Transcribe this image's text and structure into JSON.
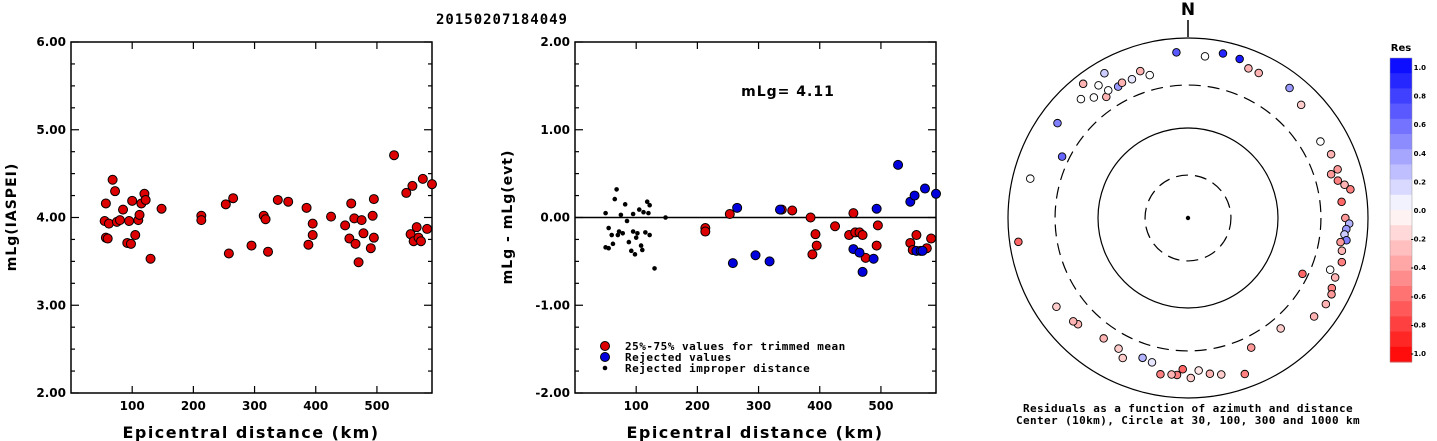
{
  "figure_title": "20150207184049",
  "chart_data": [
    {
      "type": "scatter",
      "title": "",
      "xlabel": "Epicentral distance (km)",
      "ylabel": "mLg(IASPEI)",
      "xlim": [
        0,
        590
      ],
      "ylim": [
        2.0,
        6.0
      ],
      "x_ticks": [
        "100",
        "200",
        "300",
        "400",
        "500"
      ],
      "y_ticks": [
        "2.00",
        "3.00",
        "4.00",
        "5.00",
        "6.00"
      ],
      "grid": false,
      "series": [
        {
          "color": "#dd0000",
          "points": [
            [
              55,
              3.96
            ],
            [
              57,
              4.16
            ],
            [
              57,
              3.77
            ],
            [
              60,
              3.76
            ],
            [
              62,
              3.93
            ],
            [
              68,
              4.43
            ],
            [
              72,
              4.3
            ],
            [
              75,
              3.95
            ],
            [
              80,
              3.97
            ],
            [
              85,
              4.09
            ],
            [
              92,
              3.71
            ],
            [
              95,
              3.96
            ],
            [
              98,
              3.7
            ],
            [
              100,
              4.19
            ],
            [
              105,
              3.8
            ],
            [
              110,
              3.97
            ],
            [
              112,
              4.03
            ],
            [
              115,
              4.16
            ],
            [
              120,
              4.27
            ],
            [
              122,
              4.2
            ],
            [
              130,
              3.53
            ],
            [
              148,
              4.1
            ],
            [
              213,
              4.02
            ],
            [
              213,
              3.97
            ],
            [
              253,
              4.15
            ],
            [
              258,
              3.59
            ],
            [
              265,
              4.22
            ],
            [
              295,
              3.68
            ],
            [
              315,
              4.02
            ],
            [
              318,
              3.98
            ],
            [
              322,
              3.61
            ],
            [
              338,
              4.2
            ],
            [
              355,
              4.18
            ],
            [
              385,
              4.11
            ],
            [
              388,
              3.69
            ],
            [
              395,
              3.8
            ],
            [
              395,
              3.93
            ],
            [
              425,
              4.01
            ],
            [
              448,
              3.91
            ],
            [
              455,
              3.76
            ],
            [
              458,
              4.16
            ],
            [
              463,
              3.99
            ],
            [
              465,
              3.7
            ],
            [
              470,
              3.49
            ],
            [
              475,
              3.97
            ],
            [
              478,
              3.82
            ],
            [
              490,
              3.65
            ],
            [
              493,
              4.02
            ],
            [
              495,
              4.21
            ],
            [
              495,
              3.77
            ],
            [
              528,
              4.71
            ],
            [
              548,
              4.28
            ],
            [
              555,
              3.81
            ],
            [
              558,
              4.36
            ],
            [
              560,
              3.73
            ],
            [
              565,
              3.89
            ],
            [
              568,
              3.77
            ],
            [
              572,
              3.73
            ],
            [
              575,
              4.44
            ],
            [
              582,
              3.87
            ],
            [
              590,
              4.38
            ]
          ]
        }
      ]
    },
    {
      "type": "scatter",
      "title": "",
      "xlabel": "Epicentral distance (km)",
      "ylabel": "mLg - mLg(evt)",
      "annotation": "mLg= 4.11",
      "xlim": [
        0,
        590
      ],
      "ylim": [
        -2.0,
        2.0
      ],
      "x_ticks": [
        "100",
        "200",
        "300",
        "400",
        "500"
      ],
      "y_ticks": [
        "-2.00",
        "-1.00",
        "0.00",
        "1.00",
        "2.00"
      ],
      "reference_line": 0.0,
      "legend": {
        "placement": "lower-left",
        "entries": [
          {
            "label": "25%-75% values for trimmed mean",
            "color": "#dd0000"
          },
          {
            "label": "Rejected values",
            "color": "#0000dd"
          },
          {
            "label": "Rejected improper distance",
            "color": "#000000"
          }
        ]
      },
      "series": [
        {
          "label": "25%-75% values for trimmed mean",
          "color": "#dd0000",
          "points": [
            [
              213,
              -0.12
            ],
            [
              213,
              -0.16
            ],
            [
              253,
              0.04
            ],
            [
              338,
              0.09
            ],
            [
              355,
              0.08
            ],
            [
              385,
              0.0
            ],
            [
              388,
              -0.42
            ],
            [
              393,
              -0.19
            ],
            [
              395,
              -0.32
            ],
            [
              425,
              -0.1
            ],
            [
              448,
              -0.2
            ],
            [
              455,
              0.05
            ],
            [
              458,
              -0.17
            ],
            [
              465,
              -0.17
            ],
            [
              470,
              -0.2
            ],
            [
              475,
              -0.46
            ],
            [
              493,
              -0.32
            ],
            [
              495,
              -0.09
            ],
            [
              548,
              -0.29
            ],
            [
              552,
              -0.37
            ],
            [
              558,
              -0.2
            ],
            [
              575,
              -0.35
            ],
            [
              582,
              -0.24
            ]
          ]
        },
        {
          "label": "Rejected values",
          "color": "#0000dd",
          "points": [
            [
              258,
              -0.52
            ],
            [
              265,
              0.11
            ],
            [
              295,
              -0.43
            ],
            [
              318,
              -0.5
            ],
            [
              335,
              0.09
            ],
            [
              455,
              -0.36
            ],
            [
              465,
              -0.4
            ],
            [
              470,
              -0.62
            ],
            [
              488,
              -0.47
            ],
            [
              493,
              0.1
            ],
            [
              528,
              0.6
            ],
            [
              548,
              0.18
            ],
            [
              555,
              0.25
            ],
            [
              558,
              -0.38
            ],
            [
              565,
              -0.38
            ],
            [
              568,
              -0.38
            ],
            [
              572,
              0.33
            ],
            [
              590,
              0.27
            ]
          ]
        },
        {
          "label": "Rejected improper distance",
          "color": "#000000",
          "points": [
            [
              50,
              0.05
            ],
            [
              50,
              -0.34
            ],
            [
              55,
              -0.12
            ],
            [
              55,
              -0.35
            ],
            [
              60,
              -0.2
            ],
            [
              62,
              -0.3
            ],
            [
              65,
              0.21
            ],
            [
              68,
              0.32
            ],
            [
              70,
              -0.2
            ],
            [
              72,
              -0.16
            ],
            [
              75,
              0.03
            ],
            [
              78,
              -0.18
            ],
            [
              82,
              0.15
            ],
            [
              85,
              -0.04
            ],
            [
              88,
              -0.28
            ],
            [
              92,
              -0.38
            ],
            [
              95,
              0.04
            ],
            [
              95,
              -0.16
            ],
            [
              98,
              -0.42
            ],
            [
              100,
              -0.23
            ],
            [
              102,
              -0.18
            ],
            [
              105,
              0.09
            ],
            [
              108,
              -0.32
            ],
            [
              110,
              -0.37
            ],
            [
              112,
              0.06
            ],
            [
              115,
              -0.17
            ],
            [
              118,
              0.18
            ],
            [
              120,
              0.05
            ],
            [
              122,
              0.14
            ],
            [
              122,
              -0.2
            ],
            [
              130,
              -0.58
            ],
            [
              148,
              0.0
            ]
          ]
        }
      ]
    },
    {
      "type": "scatter",
      "title": "N",
      "kind": "polar residual plot (azimuth vs log distance)",
      "caption_lines": [
        "Residuals as a function of azimuth and distance",
        "Center (10km), Circle at 30, 100, 300 and 1000 km"
      ],
      "rings_km": [
        30,
        100,
        300,
        1000
      ],
      "ring_styles": [
        "dashed",
        "solid",
        "dashed",
        "solid"
      ],
      "colorbar": {
        "title": "Res",
        "range": [
          -1.0,
          1.0
        ],
        "tick_labels": [
          "1.0",
          "0.8",
          "0.6",
          "0.4",
          "0.2",
          "0.0",
          "-0.2",
          "-0.4",
          "-0.6",
          "-0.8",
          "-1.0"
        ],
        "top_color": "#0000ff",
        "mid_color": "#ffffff",
        "bottom_color": "#ff0000"
      },
      "stations": [
        {
          "az": 356,
          "dist": 700,
          "res": 0.65
        },
        {
          "az": 6,
          "dist": 640,
          "res": 0.0
        },
        {
          "az": 12,
          "dist": 740,
          "res": 0.85
        },
        {
          "az": 18,
          "dist": 720,
          "res": 0.9
        },
        {
          "az": 22,
          "dist": 620,
          "res": -0.3
        },
        {
          "az": 26,
          "dist": 620,
          "res": -0.3
        },
        {
          "az": 38,
          "dist": 680,
          "res": 0.4
        },
        {
          "az": 45,
          "dist": 600,
          "res": -0.2
        },
        {
          "az": 60,
          "dist": 500,
          "res": 0.0
        },
        {
          "az": 66,
          "dist": 550,
          "res": -0.3
        },
        {
          "az": 72,
          "dist": 560,
          "res": -0.4
        },
        {
          "az": 73,
          "dist": 460,
          "res": -0.4
        },
        {
          "az": 76,
          "dist": 520,
          "res": -0.5
        },
        {
          "az": 78,
          "dist": 600,
          "res": -0.3
        },
        {
          "az": 80,
          "dist": 680,
          "res": -0.5
        },
        {
          "az": 84,
          "dist": 520,
          "res": -0.6
        },
        {
          "az": 90,
          "dist": 560,
          "res": -0.4
        },
        {
          "az": 92,
          "dist": 620,
          "res": 0.3
        },
        {
          "az": 94,
          "dist": 580,
          "res": 0.4
        },
        {
          "az": 96,
          "dist": 560,
          "res": 0.2
        },
        {
          "az": 98,
          "dist": 600,
          "res": 0.5
        },
        {
          "az": 99,
          "dist": 520,
          "res": -0.4
        },
        {
          "az": 102,
          "dist": 560,
          "res": -0.3
        },
        {
          "az": 106,
          "dist": 600,
          "res": -0.5
        },
        {
          "az": 110,
          "dist": 480,
          "res": 0.0
        },
        {
          "az": 112,
          "dist": 580,
          "res": -0.3
        },
        {
          "az": 116,
          "dist": 600,
          "res": -0.5
        },
        {
          "az": 118,
          "dist": 640,
          "res": -0.4
        },
        {
          "az": 122,
          "dist": 640,
          "res": -0.3
        },
        {
          "az": 116,
          "dist": 260,
          "res": -0.6
        },
        {
          "az": 128,
          "dist": 600,
          "res": -0.3
        },
        {
          "az": 140,
          "dist": 400,
          "res": -0.2
        },
        {
          "az": 154,
          "dist": 400,
          "res": -0.4
        },
        {
          "az": 160,
          "dist": 700,
          "res": -0.5
        },
        {
          "az": 168,
          "dist": 600,
          "res": -0.2
        },
        {
          "az": 172,
          "dist": 560,
          "res": -0.3
        },
        {
          "az": 176,
          "dist": 500,
          "res": -0.1
        },
        {
          "az": 179,
          "dist": 600,
          "res": -0.2
        },
        {
          "az": 182,
          "dist": 480,
          "res": -0.6
        },
        {
          "az": 184,
          "dist": 560,
          "res": -0.5
        },
        {
          "az": 186,
          "dist": 560,
          "res": -0.3
        },
        {
          "az": 190,
          "dist": 580,
          "res": -0.5
        },
        {
          "az": 194,
          "dist": 450,
          "res": 0.1
        },
        {
          "az": 198,
          "dist": 430,
          "res": 0.3
        },
        {
          "az": 205,
          "dist": 520,
          "res": -0.2
        },
        {
          "az": 208,
          "dist": 440,
          "res": -0.2
        },
        {
          "az": 215,
          "dist": 430,
          "res": -0.3
        },
        {
          "az": 226,
          "dist": 500,
          "res": -0.3
        },
        {
          "az": 228,
          "dist": 520,
          "res": -0.3
        },
        {
          "az": 236,
          "dist": 580,
          "res": -0.2
        },
        {
          "az": 262,
          "dist": 800,
          "res": -0.6
        },
        {
          "az": 284,
          "dist": 640,
          "res": 0.0
        },
        {
          "az": 296,
          "dist": 360,
          "res": 0.6
        },
        {
          "az": 306,
          "dist": 620,
          "res": 0.5
        },
        {
          "az": 318,
          "dist": 600,
          "res": 0.0
        },
        {
          "az": 322,
          "dist": 500,
          "res": 0.0
        },
        {
          "az": 326,
          "dist": 420,
          "res": -0.3
        },
        {
          "az": 328,
          "dist": 470,
          "res": 0.0
        },
        {
          "az": 332,
          "dist": 450,
          "res": 0.4
        },
        {
          "az": 334,
          "dist": 470,
          "res": -0.3
        },
        {
          "az": 338,
          "dist": 460,
          "res": 0.1
        },
        {
          "az": 342,
          "dist": 520,
          "res": -0.3
        },
        {
          "az": 345,
          "dist": 440,
          "res": 0.0
        },
        {
          "az": 330,
          "dist": 720,
          "res": 0.2
        },
        {
          "az": 322,
          "dist": 780,
          "res": -0.3
        },
        {
          "az": 326,
          "dist": 600,
          "res": 0.0
        }
      ]
    }
  ]
}
